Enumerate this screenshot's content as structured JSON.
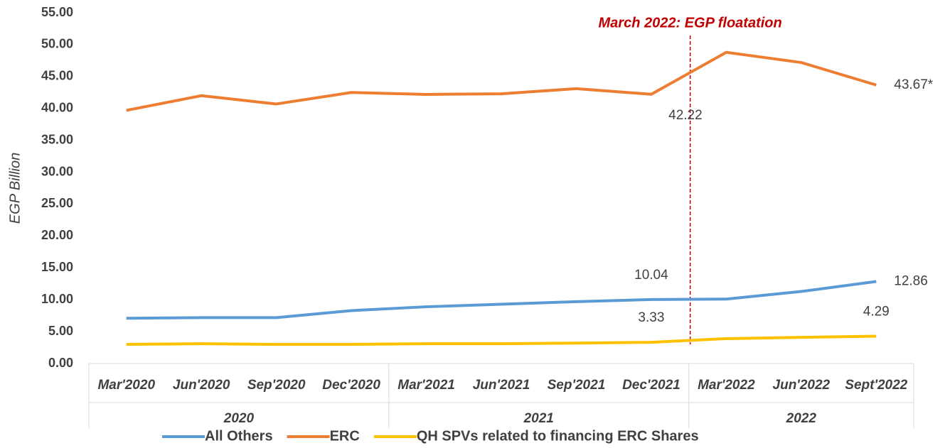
{
  "chart_data": {
    "type": "line",
    "y_label": "EGP Billion",
    "categories": [
      "Mar'2020",
      "Jun'2020",
      "Sep'2020",
      "Dec'2020",
      "Mar'2021",
      "Jun'2021",
      "Sep'2021",
      "Dec'2021",
      "Mar'2022",
      "Jun'2022",
      "Sept'2022"
    ],
    "groups": [
      {
        "label": "2020",
        "start": "Mar'2020",
        "end": "Dec'2020"
      },
      {
        "label": "2021",
        "start": "Mar'2021",
        "end": "Dec'2021"
      },
      {
        "label": "2022",
        "start": "Mar'2022",
        "end": "Sept'2022"
      }
    ],
    "series": [
      {
        "name": "All Others",
        "color": "#5b9bd5",
        "values": [
          7.1,
          7.2,
          7.2,
          8.3,
          8.9,
          9.3,
          9.7,
          10.04,
          10.1,
          11.3,
          12.86
        ],
        "value_labels": [
          null,
          null,
          null,
          null,
          null,
          null,
          null,
          "10.04",
          null,
          null,
          "12.86"
        ]
      },
      {
        "name": "ERC",
        "color": "#ed7d31",
        "values": [
          39.7,
          42.0,
          40.7,
          42.5,
          42.2,
          42.3,
          43.1,
          42.22,
          48.8,
          47.2,
          43.67
        ],
        "value_labels": [
          null,
          null,
          null,
          null,
          null,
          null,
          null,
          "42.22",
          null,
          null,
          "43.67*"
        ]
      },
      {
        "name": "QH SPVs related to financing ERC Shares",
        "color": "#ffc000",
        "values": [
          3.0,
          3.1,
          3.0,
          3.0,
          3.1,
          3.1,
          3.2,
          3.33,
          3.9,
          4.1,
          4.29
        ],
        "value_labels": [
          null,
          null,
          null,
          null,
          null,
          null,
          null,
          "3.33",
          null,
          null,
          "4.29"
        ]
      }
    ],
    "annotation": {
      "text": "March 2022: EGP floatation",
      "x": "Mar'2022",
      "color": "#c00000"
    },
    "ylim": [
      0,
      55
    ],
    "yticks": [
      {
        "value": 0,
        "label": "0.00"
      },
      {
        "value": 5,
        "label": "5.00"
      },
      {
        "value": 10,
        "label": "10.00"
      },
      {
        "value": 15,
        "label": "15.00"
      },
      {
        "value": 20,
        "label": "20.00"
      },
      {
        "value": 25,
        "label": "25.00"
      },
      {
        "value": 30,
        "label": "30.00"
      },
      {
        "value": 35,
        "label": "35.00"
      },
      {
        "value": 40,
        "label": "40.00"
      },
      {
        "value": 45,
        "label": "45.00"
      },
      {
        "value": 50,
        "label": "50.00"
      },
      {
        "value": 55,
        "label": "55.00"
      }
    ],
    "legend": "bottom"
  }
}
